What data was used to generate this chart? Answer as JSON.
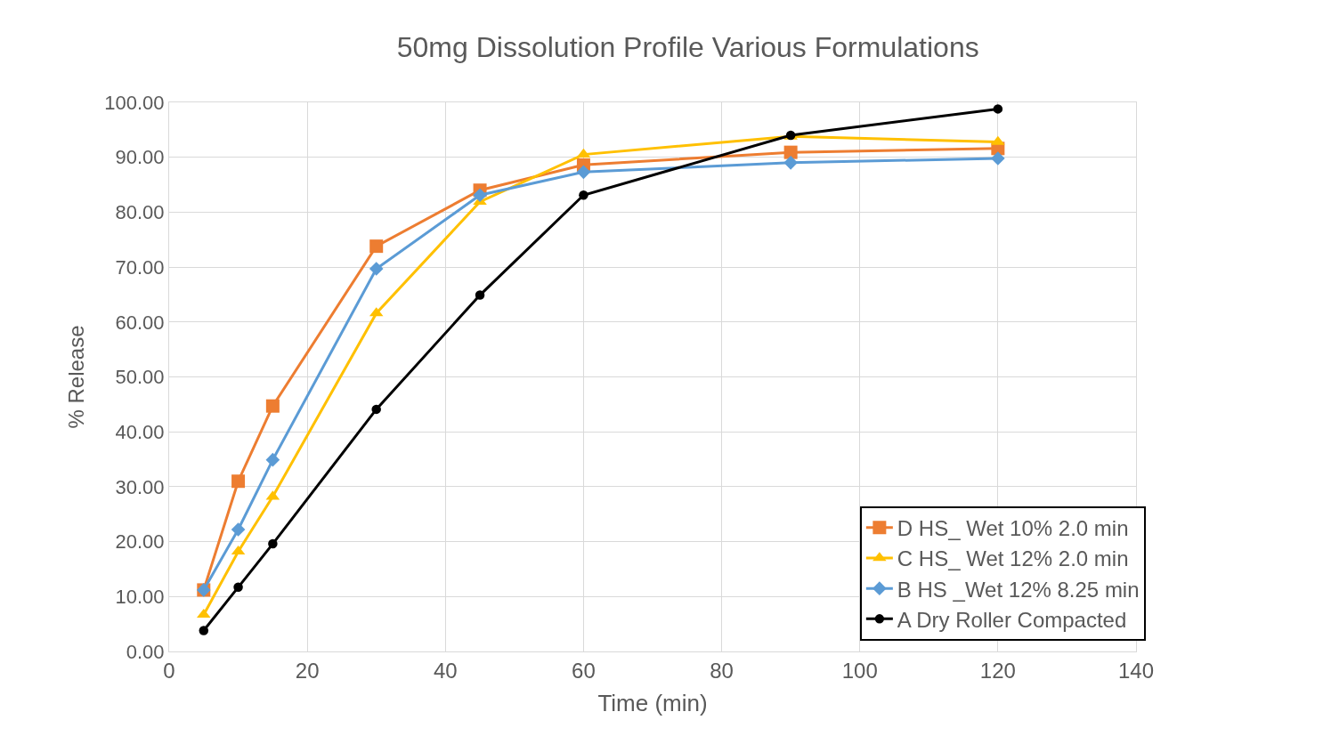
{
  "chart_data": {
    "type": "line",
    "title": "50mg Dissolution Profile Various Formulations",
    "xlabel": "Time (min)",
    "ylabel": "% Release",
    "x": [
      5,
      10,
      15,
      30,
      45,
      60,
      90,
      120
    ],
    "series": [
      {
        "name": "D HS_ Wet 10% 2.0 min",
        "color": "#ed7d31",
        "marker": "square",
        "values": [
          11.2,
          31.0,
          44.7,
          73.8,
          84.0,
          88.6,
          90.9,
          91.6
        ]
      },
      {
        "name": "C HS_ Wet 12% 2.0 min",
        "color": "#ffc000",
        "marker": "triangle",
        "values": [
          6.7,
          18.2,
          28.2,
          61.6,
          81.9,
          90.5,
          93.8,
          92.8
        ]
      },
      {
        "name": "B HS _Wet 12% 8.25 min",
        "color": "#5b9bd5",
        "marker": "diamond",
        "values": [
          11.2,
          22.2,
          34.9,
          69.7,
          83.1,
          87.3,
          89.0,
          89.8
        ]
      },
      {
        "name": "A Dry Roller Compacted",
        "color": "#000000",
        "marker": "circle",
        "values": [
          3.8,
          11.7,
          19.6,
          44.1,
          64.9,
          83.1,
          94.0,
          98.8
        ]
      }
    ],
    "xlim": [
      0,
      140
    ],
    "xticks": [
      0,
      20,
      40,
      60,
      80,
      100,
      120,
      140
    ],
    "ylim": [
      0,
      100
    ],
    "yticks": [
      {
        "value": 0,
        "label": "0.00"
      },
      {
        "value": 10,
        "label": "10.00"
      },
      {
        "value": 20,
        "label": "20.00"
      },
      {
        "value": 30,
        "label": "30.00"
      },
      {
        "value": 40,
        "label": "40.00"
      },
      {
        "value": 50,
        "label": "50.00"
      },
      {
        "value": 60,
        "label": "60.00"
      },
      {
        "value": 70,
        "label": "70.00"
      },
      {
        "value": 80,
        "label": "80.00"
      },
      {
        "value": 90,
        "label": "90.00"
      },
      {
        "value": 100,
        "label": "100.00"
      }
    ],
    "grid": true,
    "legend": "bottom right",
    "line_style": "solid"
  }
}
